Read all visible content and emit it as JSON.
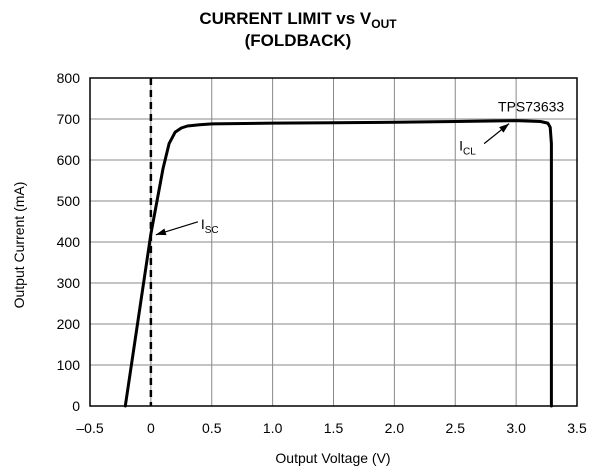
{
  "chart_data": {
    "type": "line",
    "title": {
      "line1_main": "CURRENT LIMIT vs V",
      "line1_sub": "OUT",
      "line2": "(FOLDBACK)"
    },
    "xlabel": "Output Voltage (V)",
    "ylabel": "Output Current (mA)",
    "xlim": [
      -0.5,
      3.5
    ],
    "ylim": [
      0,
      800
    ],
    "x_ticks": [
      -0.5,
      0,
      0.5,
      1.0,
      1.5,
      2.0,
      2.5,
      3.0,
      3.5
    ],
    "x_tick_labels": [
      "–0.5",
      "0",
      "0.5",
      "1.0",
      "1.5",
      "2.0",
      "2.5",
      "3.0",
      "3.5"
    ],
    "y_ticks": [
      0,
      100,
      200,
      300,
      400,
      500,
      600,
      700,
      800
    ],
    "y_tick_labels": [
      "0",
      "100",
      "200",
      "300",
      "400",
      "500",
      "600",
      "700",
      "800"
    ],
    "grid": true,
    "series": [
      {
        "name": "TPS73633",
        "x": [
          -0.21,
          0.0,
          0.1,
          0.15,
          0.2,
          0.25,
          0.3,
          0.4,
          0.5,
          1.0,
          1.5,
          2.0,
          2.5,
          3.0,
          3.2,
          3.26,
          3.28,
          3.29,
          3.29,
          3.29,
          3.29
        ],
        "y": [
          0,
          420,
          580,
          640,
          668,
          678,
          683,
          686,
          688,
          690,
          691,
          692,
          694,
          696,
          694,
          690,
          680,
          640,
          400,
          100,
          0
        ]
      }
    ],
    "reference_line": {
      "x": 0,
      "style": "dashed"
    },
    "annotations": {
      "series_label": "TPS73633",
      "icl_main": "I",
      "icl_sub": "CL",
      "icl_point": {
        "x": 3.0,
        "y": 696
      },
      "isc_main": "I",
      "isc_sub": "SC",
      "isc_point": {
        "x": 0.0,
        "y": 420
      }
    }
  }
}
